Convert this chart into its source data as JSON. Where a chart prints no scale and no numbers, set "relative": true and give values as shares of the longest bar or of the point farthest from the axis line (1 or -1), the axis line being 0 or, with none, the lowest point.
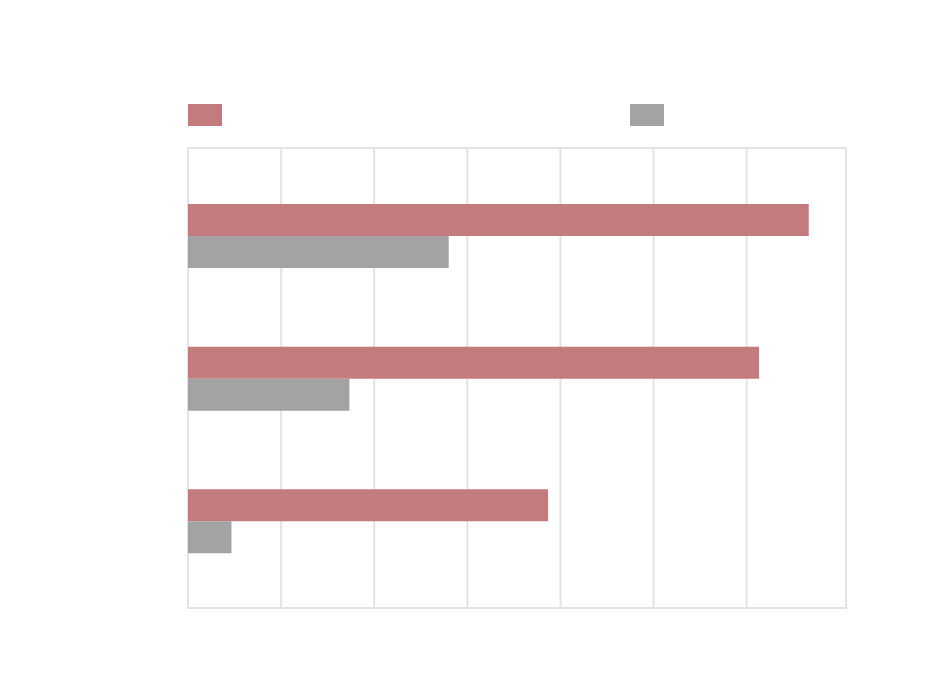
{
  "chart_data": {
    "type": "bar",
    "orientation": "horizontal",
    "relative": true,
    "categories": [
      null,
      null,
      null
    ],
    "series": [
      {
        "color": "#c47b7e",
        "values": [
          1,
          0.92,
          0.58
        ]
      },
      {
        "color": "#a2a3a2",
        "values": [
          0.42,
          0.26,
          0.07
        ]
      }
    ],
    "grid": "x"
  }
}
